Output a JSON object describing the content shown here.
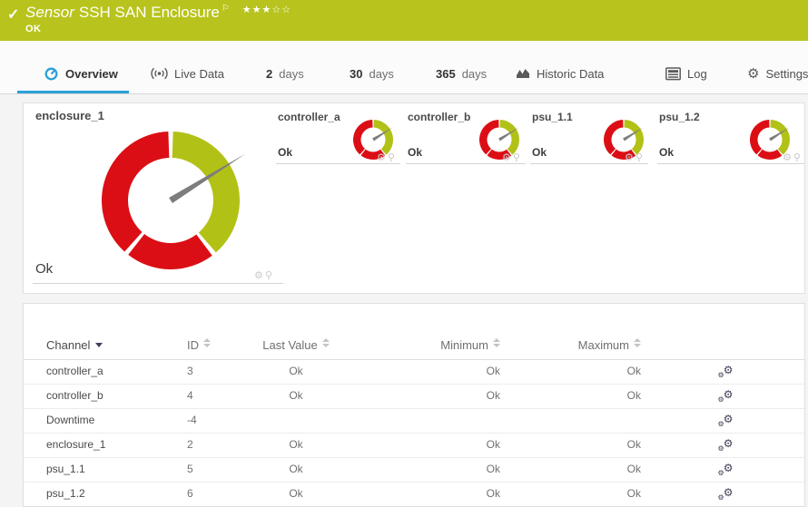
{
  "colors": {
    "header_green": "#b8c41d",
    "gauge_green": "#b2c116",
    "gauge_red": "#dc0e15",
    "needle_gray": "#7d7d7d",
    "accent_blue": "#29a0d8"
  },
  "header": {
    "check_icon": "✓",
    "type_label": "Sensor",
    "title": "SSH SAN Enclosure",
    "flag_icon": "⚐",
    "rating_filled": 3,
    "rating_total": 5,
    "status": "OK"
  },
  "tabs": [
    {
      "label": "Overview",
      "icon": "gauge-icon",
      "active": true
    },
    {
      "label": "Live Data",
      "icon": "live-icon"
    },
    {
      "num": "2",
      "label": "days"
    },
    {
      "num": "30",
      "label": "days"
    },
    {
      "num": "365",
      "label": "days"
    },
    {
      "label": "Historic Data",
      "icon": "chart-icon"
    },
    {
      "label": "Log",
      "icon": "log-icon"
    },
    {
      "label": "Settings",
      "icon": "gear-icon"
    }
  ],
  "gauge_chart": {
    "type": "gauge",
    "segments": [
      {
        "state": "ok",
        "color": "green",
        "start_deg": 2,
        "end_deg": 139
      },
      {
        "state": "error",
        "color": "red",
        "start_deg": 143,
        "end_deg": 218
      },
      {
        "state": "error",
        "color": "red",
        "start_deg": 222,
        "end_deg": 358
      }
    ],
    "needle_deg": 58,
    "cell_icons": {
      "gear": "⚙",
      "pin": "⚲"
    },
    "items": [
      {
        "name": "enclosure_1",
        "value": "Ok",
        "size": "large"
      },
      {
        "name": "controller_a",
        "value": "Ok",
        "size": "small"
      },
      {
        "name": "controller_b",
        "value": "Ok",
        "size": "small"
      },
      {
        "name": "psu_1.1",
        "value": "Ok",
        "size": "small"
      },
      {
        "name": "psu_1.2",
        "value": "Ok",
        "size": "small"
      }
    ]
  },
  "channel_table": {
    "columns": [
      {
        "label": "Channel",
        "sort": "desc"
      },
      {
        "label": "ID",
        "sort": "both"
      },
      {
        "label": "Last Value",
        "sort": "both"
      },
      {
        "label": "Minimum",
        "sort": "both"
      },
      {
        "label": "Maximum",
        "sort": "both"
      }
    ],
    "row_action_icon": "channel-settings-gears",
    "rows": [
      {
        "channel": "controller_a",
        "id": "3",
        "last_value": "Ok",
        "minimum": "Ok",
        "maximum": "Ok"
      },
      {
        "channel": "controller_b",
        "id": "4",
        "last_value": "Ok",
        "minimum": "Ok",
        "maximum": "Ok"
      },
      {
        "channel": "Downtime",
        "id": "-4",
        "last_value": "",
        "minimum": "",
        "maximum": ""
      },
      {
        "channel": "enclosure_1",
        "id": "2",
        "last_value": "Ok",
        "minimum": "Ok",
        "maximum": "Ok"
      },
      {
        "channel": "psu_1.1",
        "id": "5",
        "last_value": "Ok",
        "minimum": "Ok",
        "maximum": "Ok"
      },
      {
        "channel": "psu_1.2",
        "id": "6",
        "last_value": "Ok",
        "minimum": "Ok",
        "maximum": "Ok"
      }
    ]
  }
}
